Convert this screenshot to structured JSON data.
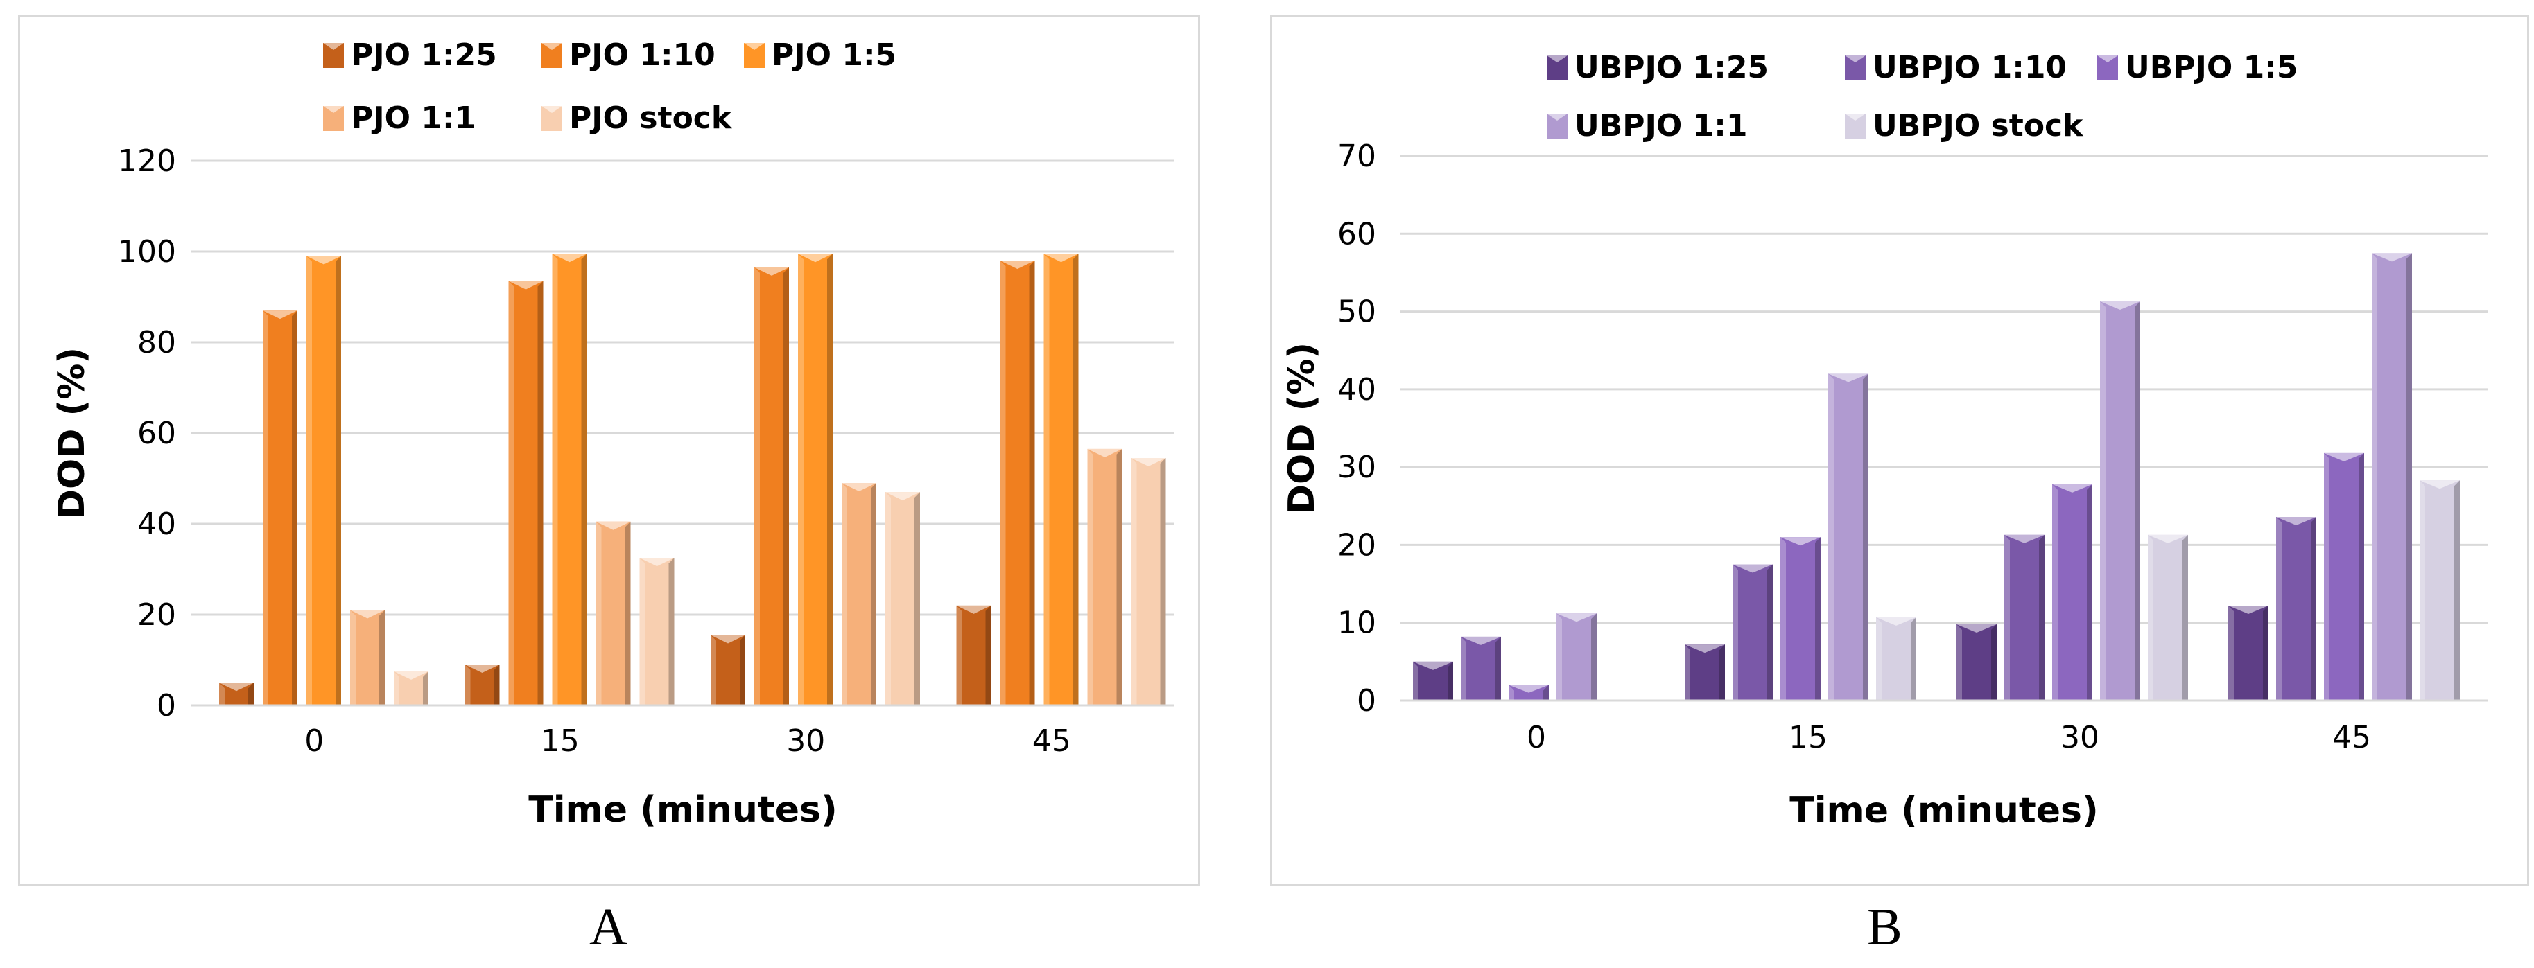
{
  "chart_data": [
    {
      "type": "bar",
      "panel_label": "A",
      "title": "",
      "xlabel": "Time (minutes)",
      "ylabel": "DOD (%)",
      "categories": [
        "0",
        "15",
        "30",
        "45"
      ],
      "ylim": [
        0,
        120
      ],
      "yticks": [
        "0",
        "20",
        "40",
        "60",
        "80",
        "100",
        "120"
      ],
      "grid": true,
      "legend_position": "top",
      "series": [
        {
          "name": "PJO 1:25",
          "color": "#c4601a",
          "values": [
            5,
            9,
            15.5,
            22
          ]
        },
        {
          "name": "PJO 1:10",
          "color": "#f07f1f",
          "values": [
            87,
            93.5,
            96.5,
            98
          ]
        },
        {
          "name": "PJO 1:5",
          "color": "#ff9526",
          "values": [
            99,
            99.5,
            99.5,
            99.5
          ]
        },
        {
          "name": "PJO 1:1",
          "color": "#f6b07a",
          "values": [
            21,
            40.5,
            49,
            56.5
          ]
        },
        {
          "name": "PJO stock",
          "color": "#f8cfb0",
          "values": [
            7.5,
            32.5,
            47,
            54.5
          ]
        }
      ]
    },
    {
      "type": "bar",
      "panel_label": "B",
      "title": "",
      "xlabel": "Time (minutes)",
      "ylabel": "DOD (%)",
      "categories": [
        "0",
        "15",
        "30",
        "45"
      ],
      "ylim": [
        0,
        70
      ],
      "yticks": [
        "0",
        "10",
        "20",
        "30",
        "40",
        "50",
        "60",
        "70"
      ],
      "grid": true,
      "legend_position": "top",
      "series": [
        {
          "name": "UBPJO 1:25",
          "color": "#5e3e86",
          "values": [
            5,
            7.2,
            9.8,
            12.2
          ]
        },
        {
          "name": "UBPJO 1:10",
          "color": "#7a58a8",
          "values": [
            8.2,
            17.5,
            21.3,
            23.6
          ]
        },
        {
          "name": "UBPJO 1:5",
          "color": "#8c67bf",
          "values": [
            2,
            21,
            27.8,
            31.8
          ]
        },
        {
          "name": "UBPJO 1:1",
          "color": "#b09ad0",
          "values": [
            11.2,
            42,
            51.3,
            57.5
          ]
        },
        {
          "name": "UBPJO stock",
          "color": "#d6d0e2",
          "values": [
            0,
            10.7,
            21.3,
            28.3
          ]
        }
      ]
    }
  ]
}
